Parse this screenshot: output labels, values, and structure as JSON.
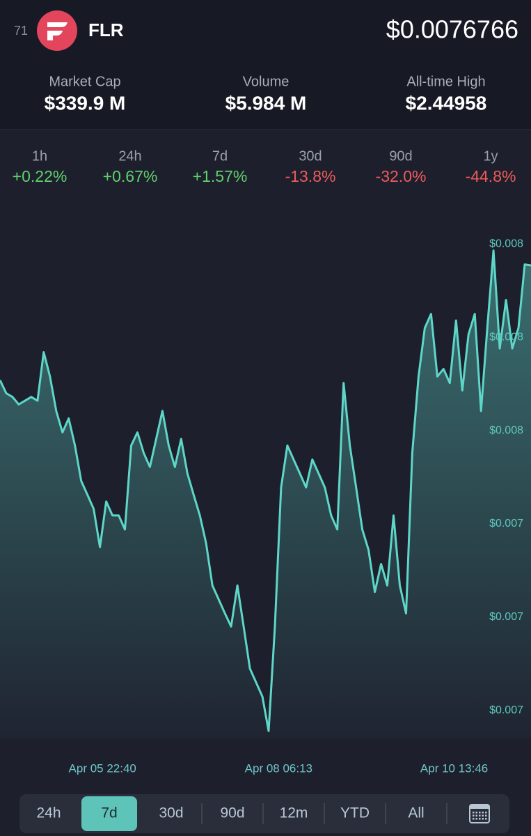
{
  "header": {
    "rank": "71",
    "symbol": "FLR",
    "price": "$0.0076766"
  },
  "stats": [
    {
      "label": "Market Cap",
      "value": "$339.9 M"
    },
    {
      "label": "Volume",
      "value": "$5.984 M"
    },
    {
      "label": "All-time High",
      "value": "$2.44958"
    }
  ],
  "changes": [
    {
      "period": "1h",
      "value": "+0.22%"
    },
    {
      "period": "24h",
      "value": "+0.67%"
    },
    {
      "period": "7d",
      "value": "+1.57%"
    },
    {
      "period": "30d",
      "value": "-13.8%"
    },
    {
      "period": "90d",
      "value": "-32.0%"
    },
    {
      "period": "1y",
      "value": "-44.8%"
    }
  ],
  "chart_data": {
    "type": "line",
    "color": "#5ed6c8",
    "values": [
      0.007554,
      0.00754,
      0.007536,
      0.007528,
      0.007532,
      0.007536,
      0.007532,
      0.007584,
      0.007558,
      0.007521,
      0.007498,
      0.007513,
      0.007484,
      0.007446,
      0.007431,
      0.007416,
      0.007375,
      0.007424,
      0.007409,
      0.007409,
      0.007394,
      0.007484,
      0.007498,
      0.007476,
      0.007461,
      0.007491,
      0.007521,
      0.007484,
      0.007461,
      0.007491,
      0.007454,
      0.007431,
      0.007409,
      0.007379,
      0.007334,
      0.007319,
      0.007304,
      0.00729,
      0.007334,
      0.00729,
      0.007245,
      0.00723,
      0.007215,
      0.007178,
      0.00729,
      0.007439,
      0.007484,
      0.007469,
      0.007454,
      0.007439,
      0.007469,
      0.007454,
      0.007439,
      0.007409,
      0.007394,
      0.007551,
      0.007484,
      0.007439,
      0.007394,
      0.007372,
      0.007327,
      0.007357,
      0.007334,
      0.007409,
      0.007334,
      0.007304,
      0.007476,
      0.007558,
      0.00761,
      0.007625,
      0.007558,
      0.007566,
      0.007551,
      0.007618,
      0.007543,
      0.007603,
      0.007625,
      0.007521,
      0.00761,
      0.007693,
      0.007588,
      0.00764,
      0.007588,
      0.00761,
      0.007678,
      0.007677
    ],
    "xlim": [
      0,
      85
    ],
    "xticks": [
      {
        "value": 16.4,
        "label": "Apr 05 22:40"
      },
      {
        "value": 44.6,
        "label": "Apr 08 06:13"
      },
      {
        "value": 72.7,
        "label": "Apr 10 13:46"
      }
    ],
    "ylim": [
      0.00717,
      0.00773
    ],
    "yticks": [
      {
        "value": 0.0077,
        "label": "$0.008"
      },
      {
        "value": 0.0076,
        "label": "$0.008"
      },
      {
        "value": 0.0075,
        "label": "$0.008"
      },
      {
        "value": 0.0074,
        "label": "$0.007"
      },
      {
        "value": 0.0073,
        "label": "$0.007"
      },
      {
        "value": 0.0072,
        "label": "$0.007"
      }
    ]
  },
  "range_buttons": [
    "24h",
    "7d",
    "30d",
    "90d",
    "12m",
    "YTD",
    "All"
  ],
  "selected_range": 1
}
